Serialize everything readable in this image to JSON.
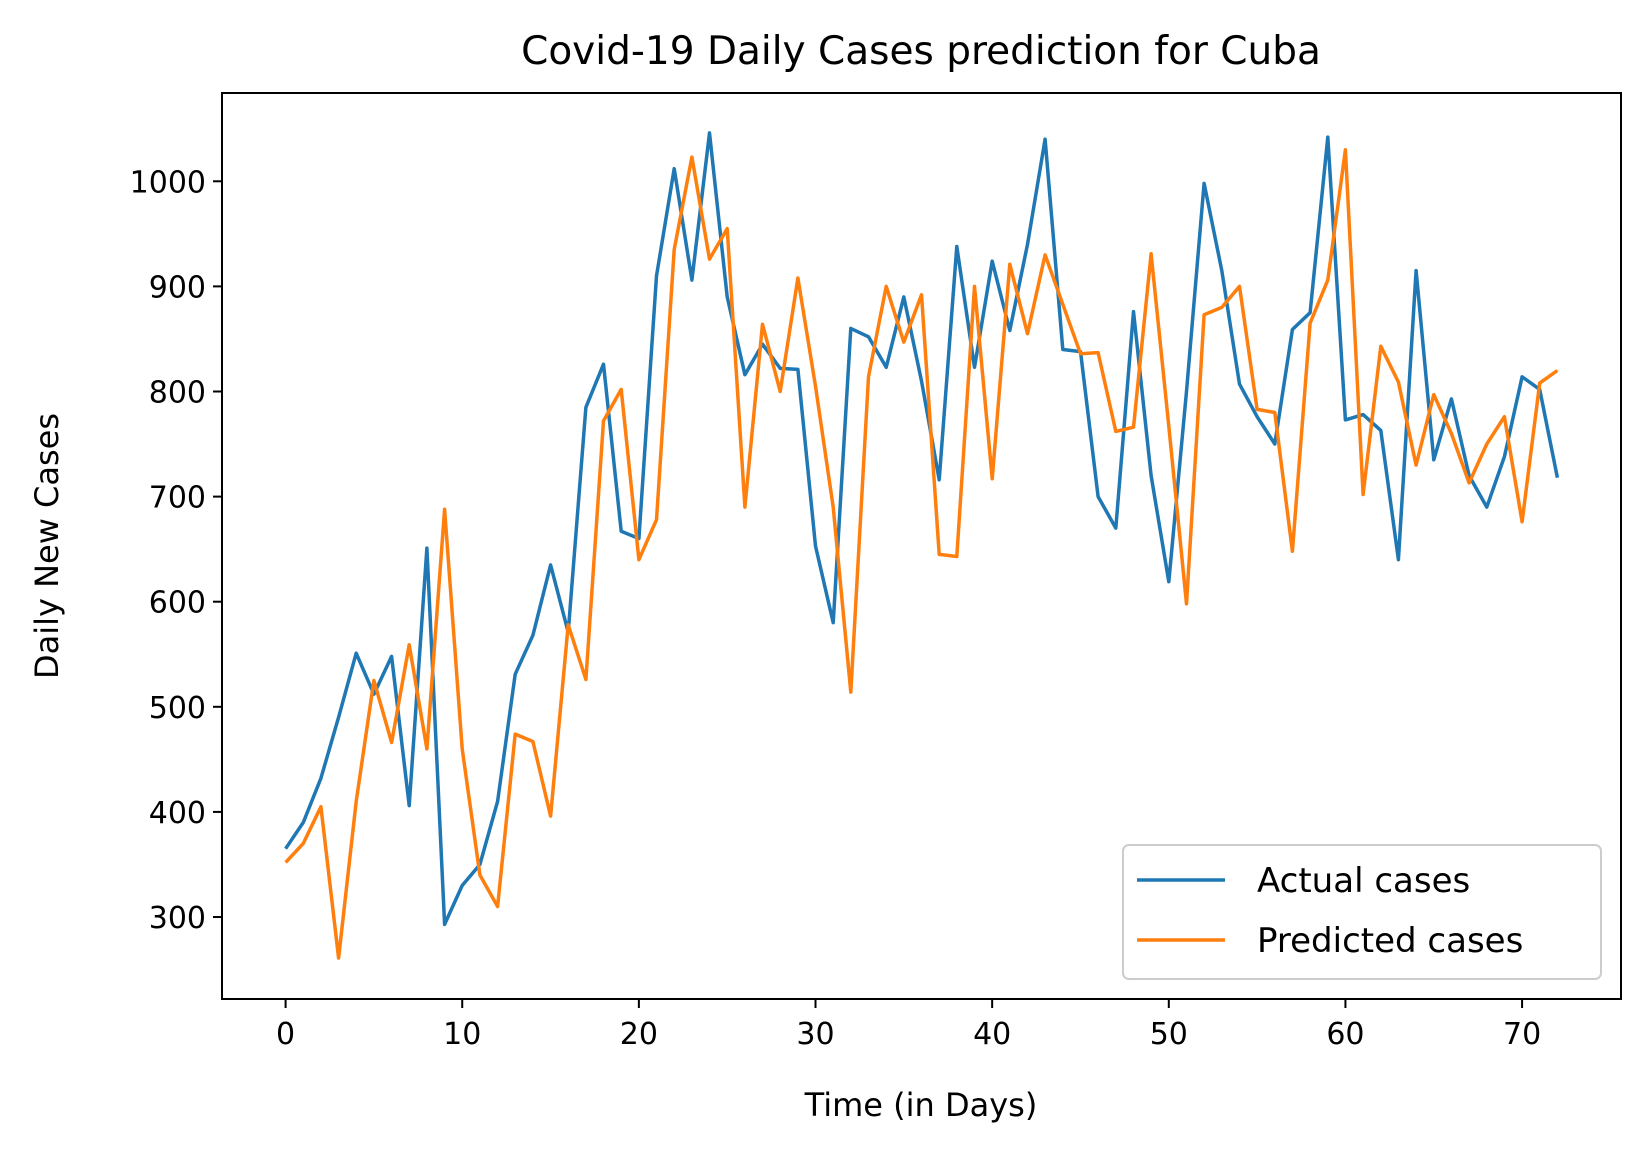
{
  "chart_data": {
    "type": "line",
    "title": "Covid-19 Daily Cases prediction for Cuba",
    "xlabel": "Time (in Days)",
    "ylabel": "Daily New Cases",
    "xlim": [
      -3.6,
      75.6
    ],
    "ylim": [
      222,
      1084
    ],
    "xticks": [
      0,
      10,
      20,
      30,
      40,
      50,
      60,
      70
    ],
    "yticks": [
      300,
      400,
      500,
      600,
      700,
      800,
      900,
      1000
    ],
    "grid": false,
    "legend_position": "lower-right",
    "series": [
      {
        "name": "Actual cases",
        "color": "#1f77b4",
        "values": [
          365,
          390,
          432,
          490,
          551,
          512,
          548,
          406,
          651,
          293,
          330,
          350,
          410,
          531,
          568,
          635,
          571,
          785,
          826,
          667,
          660,
          910,
          1012,
          906,
          1046,
          890,
          816,
          845,
          822,
          821,
          653,
          580,
          860,
          852,
          823,
          890,
          810,
          716,
          938,
          823,
          924,
          858,
          940,
          1040,
          840,
          838,
          700,
          670,
          876,
          720,
          619,
          800,
          998,
          915,
          807,
          776,
          750,
          859,
          875,
          1042,
          773,
          778,
          763,
          640,
          915,
          735,
          793,
          720,
          690,
          738,
          814,
          802,
          718
        ]
      },
      {
        "name": "Predicted cases",
        "color": "#ff7f0e",
        "values": [
          352,
          370,
          405,
          261,
          410,
          525,
          466,
          559,
          460,
          688,
          460,
          340,
          310,
          474,
          467,
          396,
          578,
          526,
          772,
          802,
          640,
          678,
          935,
          1023,
          926,
          955,
          690,
          864,
          800,
          908,
          805,
          690,
          514,
          814,
          900,
          847,
          892,
          645,
          643,
          900,
          717,
          921,
          855,
          930,
          883,
          836,
          837,
          762,
          766,
          931,
          767,
          598,
          873,
          880,
          900,
          783,
          780,
          648,
          865,
          906,
          1030,
          702,
          843,
          809,
          730,
          797,
          760,
          713,
          750,
          776,
          676,
          808,
          820
        ]
      }
    ]
  }
}
